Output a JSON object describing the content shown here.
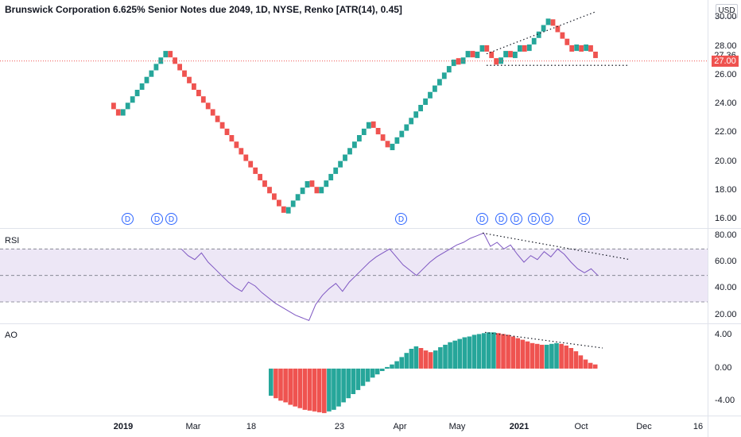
{
  "header": {
    "title": "Brunswick Corporation 6.625% Senior Notes due 2049, 1D, NYSE, Renko [ATR(14), 0.45]",
    "currency": "USD"
  },
  "price_tags": {
    "last": {
      "label": "27.36",
      "value": 27.36,
      "color": "#ffffff"
    },
    "current": {
      "label": "27.00",
      "value": 27.0,
      "color": "#ef5350"
    }
  },
  "colors": {
    "up": "#26a69a",
    "down": "#ef5350",
    "rsi_line": "#7e57c2",
    "rsi_band": "#ede7f6",
    "ao_up": "#26a69a",
    "ao_down": "#ef5350",
    "dividend": "#2962ff",
    "grid": "#e0e3eb"
  },
  "panes": {
    "rsi_label": "RSI",
    "ao_label": "AO"
  },
  "dividend_marker": "D",
  "chart_data": [
    {
      "type": "renko",
      "name": "price",
      "box_size": 0.45,
      "y_ticks": [
        "30.00",
        "28.00",
        "26.00",
        "24.00",
        "22.00",
        "20.00",
        "18.00",
        "16.00"
      ],
      "ylim": [
        15.5,
        30.8
      ],
      "x_ticks": [
        "2019",
        "Mar",
        "18",
        "23",
        "Apr",
        "May",
        "2021",
        "Oct",
        "Dec",
        "16"
      ],
      "x_ticks_bold": [
        "2019",
        "2021"
      ],
      "segments": [
        [
          24.1,
          23.2
        ],
        [
          23.2,
          27.7
        ],
        [
          27.7,
          16.4
        ],
        [
          16.4,
          18.7
        ],
        [
          18.7,
          17.8
        ],
        [
          17.8,
          22.8
        ],
        [
          22.8,
          20.8
        ],
        [
          20.8,
          27.2
        ],
        [
          27.2,
          26.8
        ],
        [
          26.8,
          27.7
        ],
        [
          27.7,
          27.2
        ],
        [
          27.2,
          28.1
        ],
        [
          28.1,
          26.8
        ],
        [
          26.8,
          27.7
        ],
        [
          27.7,
          27.2
        ],
        [
          27.2,
          28.1
        ],
        [
          28.1,
          27.7
        ],
        [
          27.7,
          29.9
        ],
        [
          29.9,
          27.7
        ],
        [
          27.7,
          28.1
        ],
        [
          28.1,
          27.7
        ],
        [
          27.7,
          28.1
        ],
        [
          28.1,
          27.0
        ]
      ],
      "trendlines": [
        [
          [
            0,
            27.5
          ],
          [
            1,
            30.4
          ]
        ],
        [
          [
            0,
            26.7
          ],
          [
            1,
            26.7
          ]
        ]
      ]
    },
    {
      "type": "line",
      "name": "RSI",
      "y_ticks": [
        "80.00",
        "60.00",
        "40.00",
        "20.00"
      ],
      "ylim": [
        15,
        84
      ],
      "bands": [
        30,
        50,
        70
      ],
      "values": [
        70,
        65,
        62,
        67,
        60,
        55,
        50,
        45,
        41,
        38,
        45,
        42,
        37,
        33,
        29,
        26,
        23,
        20,
        18,
        16,
        28,
        35,
        40,
        44,
        38,
        45,
        50,
        55,
        60,
        64,
        67,
        70,
        64,
        58,
        54,
        50,
        55,
        60,
        64,
        67,
        70,
        73,
        75,
        78,
        80,
        82,
        72,
        75,
        70,
        73,
        66,
        60,
        65,
        62,
        68,
        64,
        70,
        66,
        60,
        55,
        52,
        55,
        50
      ],
      "trendline": [
        82,
        62
      ]
    },
    {
      "type": "bar",
      "name": "AO",
      "y_ticks": [
        "4.00",
        "0.00",
        "-4.00"
      ],
      "ylim": [
        -5.6,
        5.2
      ],
      "values": [
        -3.3,
        -3.6,
        -3.9,
        -4.1,
        -4.4,
        -4.6,
        -4.8,
        -5.0,
        -5.1,
        -5.2,
        -5.3,
        -5.4,
        -5.2,
        -5.0,
        -4.6,
        -4.1,
        -3.6,
        -3.1,
        -2.6,
        -2.1,
        -1.6,
        -1.1,
        -0.7,
        -0.3,
        0.2,
        0.5,
        0.9,
        1.4,
        1.9,
        2.4,
        2.7,
        2.5,
        2.2,
        2.0,
        2.2,
        2.6,
        2.9,
        3.2,
        3.4,
        3.6,
        3.8,
        3.9,
        4.1,
        4.2,
        4.3,
        4.4,
        4.4,
        4.3,
        4.2,
        4.1,
        3.9,
        3.7,
        3.5,
        3.3,
        3.1,
        3.0,
        2.9,
        2.9,
        3.0,
        3.1,
        3.0,
        2.8,
        2.5,
        2.1,
        1.6,
        1.1,
        0.7,
        0.5
      ],
      "trendline": [
        4.4,
        2.5
      ]
    }
  ]
}
